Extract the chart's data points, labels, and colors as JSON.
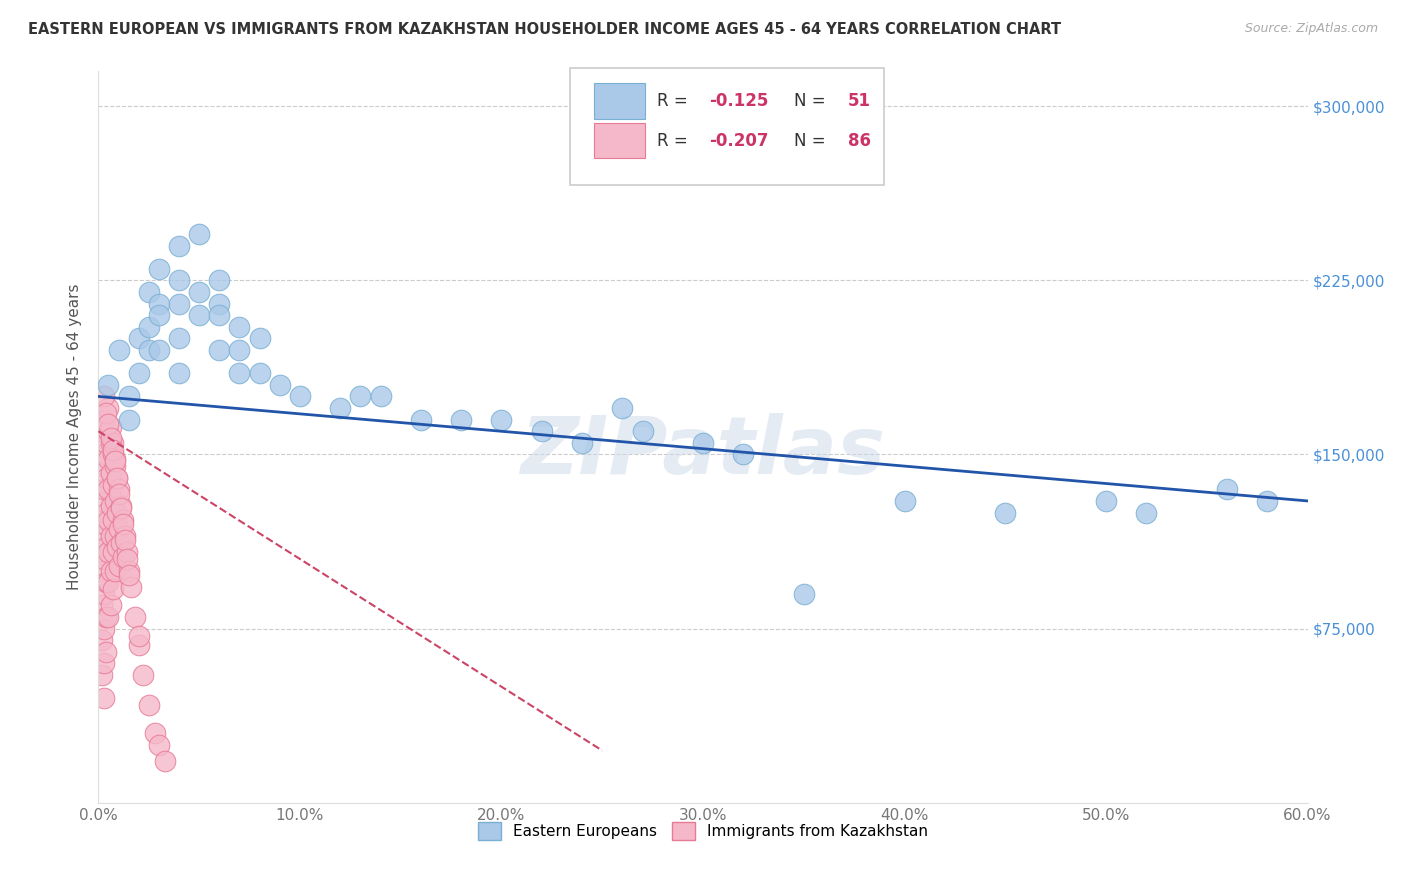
{
  "title": "EASTERN EUROPEAN VS IMMIGRANTS FROM KAZAKHSTAN HOUSEHOLDER INCOME AGES 45 - 64 YEARS CORRELATION CHART",
  "source": "Source: ZipAtlas.com",
  "xlabel_ticks": [
    "0.0%",
    "10.0%",
    "20.0%",
    "30.0%",
    "40.0%",
    "50.0%",
    "60.0%"
  ],
  "ylabel_labels": [
    "",
    "$75,000",
    "$150,000",
    "$225,000",
    "$300,000"
  ],
  "xlim": [
    0,
    0.6
  ],
  "ylim": [
    0,
    315000
  ],
  "blue_label": "Eastern Europeans",
  "pink_label": "Immigrants from Kazakhstan",
  "watermark": "ZIPatlas",
  "blue_color": "#aac9e8",
  "blue_edge": "#7aafd4",
  "pink_color": "#f5b8ca",
  "pink_edge": "#e87a96",
  "trend_blue": "#2255aa",
  "trend_pink": "#cc4466",
  "blue_scatter_x": [
    0.005,
    0.01,
    0.015,
    0.015,
    0.02,
    0.02,
    0.025,
    0.025,
    0.025,
    0.03,
    0.03,
    0.03,
    0.03,
    0.04,
    0.04,
    0.04,
    0.04,
    0.04,
    0.05,
    0.05,
    0.05,
    0.06,
    0.06,
    0.06,
    0.06,
    0.07,
    0.07,
    0.07,
    0.08,
    0.08,
    0.09,
    0.1,
    0.12,
    0.14,
    0.16,
    0.2,
    0.22,
    0.24,
    0.26,
    0.3,
    0.32,
    0.35,
    0.4,
    0.45,
    0.5,
    0.52,
    0.56,
    0.58,
    0.13,
    0.18,
    0.27
  ],
  "blue_scatter_y": [
    180000,
    195000,
    175000,
    165000,
    200000,
    185000,
    220000,
    205000,
    195000,
    230000,
    215000,
    210000,
    195000,
    240000,
    225000,
    215000,
    200000,
    185000,
    245000,
    220000,
    210000,
    225000,
    215000,
    210000,
    195000,
    205000,
    195000,
    185000,
    200000,
    185000,
    180000,
    175000,
    170000,
    175000,
    165000,
    165000,
    160000,
    155000,
    170000,
    155000,
    150000,
    90000,
    130000,
    125000,
    130000,
    125000,
    135000,
    130000,
    175000,
    165000,
    160000
  ],
  "pink_scatter_x": [
    0.002,
    0.002,
    0.002,
    0.002,
    0.002,
    0.002,
    0.002,
    0.002,
    0.003,
    0.003,
    0.003,
    0.003,
    0.003,
    0.003,
    0.003,
    0.003,
    0.003,
    0.004,
    0.004,
    0.004,
    0.004,
    0.004,
    0.004,
    0.004,
    0.005,
    0.005,
    0.005,
    0.005,
    0.005,
    0.005,
    0.005,
    0.006,
    0.006,
    0.006,
    0.006,
    0.006,
    0.006,
    0.007,
    0.007,
    0.007,
    0.007,
    0.007,
    0.008,
    0.008,
    0.008,
    0.008,
    0.009,
    0.009,
    0.009,
    0.01,
    0.01,
    0.01,
    0.011,
    0.011,
    0.012,
    0.012,
    0.013,
    0.014,
    0.015,
    0.016,
    0.018,
    0.02,
    0.022,
    0.025,
    0.028,
    0.03,
    0.033,
    0.005,
    0.006,
    0.007,
    0.008,
    0.003,
    0.004,
    0.005,
    0.006,
    0.007,
    0.008,
    0.009,
    0.01,
    0.011,
    0.012,
    0.013,
    0.014,
    0.015,
    0.02
  ],
  "pink_scatter_y": [
    160000,
    145000,
    130000,
    115000,
    100000,
    85000,
    70000,
    55000,
    165000,
    150000,
    135000,
    120000,
    105000,
    90000,
    75000,
    60000,
    45000,
    155000,
    140000,
    125000,
    110000,
    95000,
    80000,
    65000,
    160000,
    148000,
    135000,
    122000,
    108000,
    95000,
    80000,
    155000,
    142000,
    128000,
    115000,
    100000,
    85000,
    150000,
    137000,
    122000,
    108000,
    92000,
    145000,
    130000,
    115000,
    100000,
    140000,
    125000,
    110000,
    135000,
    118000,
    102000,
    128000,
    112000,
    122000,
    106000,
    115000,
    108000,
    100000,
    93000,
    80000,
    68000,
    55000,
    42000,
    30000,
    25000,
    18000,
    170000,
    162000,
    155000,
    148000,
    175000,
    168000,
    163000,
    157000,
    152000,
    147000,
    140000,
    133000,
    127000,
    120000,
    113000,
    105000,
    98000,
    72000
  ]
}
